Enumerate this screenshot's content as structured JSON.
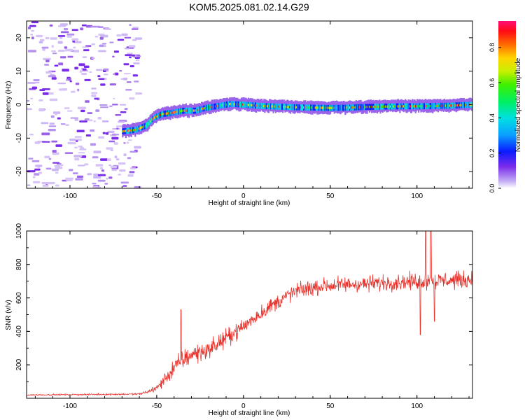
{
  "title": "KOM5.2025.081.02.14.G29",
  "chart_data": [
    {
      "type": "heatmap",
      "xlabel": "Height of straight line (km)",
      "ylabel": "Frequency (Hz)",
      "xlim": [
        -125,
        132
      ],
      "ylim": [
        -25,
        25
      ],
      "xticks": [
        -100,
        -50,
        0,
        50,
        100
      ],
      "yticks": [
        -20,
        -10,
        0,
        10,
        20
      ],
      "colorbar": {
        "label": "Normalized spectral amplitude",
        "range": [
          0,
          0.95
        ],
        "ticks": [
          "0.0",
          "0.2",
          "0.4",
          "0.6",
          "0.8"
        ],
        "colormap": "rainbow (purple to red, pink at top)"
      },
      "ridge": {
        "description": "dominant Doppler frequency track",
        "points": [
          {
            "x": -70,
            "y": -8.0
          },
          {
            "x": -62,
            "y": -7.5
          },
          {
            "x": -56,
            "y": -6.2
          },
          {
            "x": -52,
            "y": -4.0
          },
          {
            "x": -47,
            "y": -2.8
          },
          {
            "x": -42,
            "y": -2.5
          },
          {
            "x": -35,
            "y": -1.8
          },
          {
            "x": -28,
            "y": -1.8
          },
          {
            "x": -22,
            "y": -1.0
          },
          {
            "x": -15,
            "y": -0.4
          },
          {
            "x": -8,
            "y": 0.2
          },
          {
            "x": 0,
            "y": 0.0
          },
          {
            "x": 10,
            "y": -0.4
          },
          {
            "x": 20,
            "y": -0.6
          },
          {
            "x": 30,
            "y": -0.8
          },
          {
            "x": 40,
            "y": -0.9
          },
          {
            "x": 50,
            "y": -1.0
          },
          {
            "x": 60,
            "y": -0.9
          },
          {
            "x": 70,
            "y": -0.7
          },
          {
            "x": 80,
            "y": -0.6
          },
          {
            "x": 90,
            "y": -0.5
          },
          {
            "x": 100,
            "y": -0.5
          },
          {
            "x": 110,
            "y": -0.4
          },
          {
            "x": 120,
            "y": -0.3
          },
          {
            "x": 132,
            "y": 0.0
          }
        ]
      },
      "noise_region": {
        "x_range": [
          -125,
          -62
        ],
        "y_range": [
          -25,
          25
        ]
      }
    },
    {
      "type": "line",
      "xlabel": "Height of straight line (km)",
      "ylabel": "SNR (v/v)",
      "xlim": [
        -125,
        132
      ],
      "ylim": [
        0,
        1000
      ],
      "xticks": [
        -100,
        -50,
        0,
        50,
        100
      ],
      "yticks": [
        200,
        400,
        600,
        800,
        1000
      ],
      "color": "#e8302a",
      "trend": [
        {
          "x": -125,
          "y": 20
        },
        {
          "x": -60,
          "y": 25
        },
        {
          "x": -55,
          "y": 40
        },
        {
          "x": -50,
          "y": 60
        },
        {
          "x": -45,
          "y": 120
        },
        {
          "x": -40,
          "y": 180
        },
        {
          "x": -35,
          "y": 230
        },
        {
          "x": -30,
          "y": 260
        },
        {
          "x": -20,
          "y": 290
        },
        {
          "x": -10,
          "y": 360
        },
        {
          "x": 0,
          "y": 430
        },
        {
          "x": 10,
          "y": 510
        },
        {
          "x": 20,
          "y": 580
        },
        {
          "x": 30,
          "y": 640
        },
        {
          "x": 45,
          "y": 670
        },
        {
          "x": 60,
          "y": 680
        },
        {
          "x": 80,
          "y": 690
        },
        {
          "x": 100,
          "y": 700
        },
        {
          "x": 120,
          "y": 705
        },
        {
          "x": 132,
          "y": 710
        }
      ],
      "noise_amplitude": [
        {
          "x": -125,
          "y": 5
        },
        {
          "x": -60,
          "y": 8
        },
        {
          "x": -50,
          "y": 30
        },
        {
          "x": -40,
          "y": 90
        },
        {
          "x": -20,
          "y": 80
        },
        {
          "x": 0,
          "y": 70
        },
        {
          "x": 30,
          "y": 70
        },
        {
          "x": 80,
          "y": 70
        },
        {
          "x": 132,
          "y": 75
        }
      ],
      "spikes": [
        {
          "x": -36,
          "y": 530
        },
        {
          "x": 102,
          "y": 380
        },
        {
          "x": 105,
          "y": 1000
        },
        {
          "x": 108,
          "y": 1000
        },
        {
          "x": 110,
          "y": 460
        }
      ]
    }
  ]
}
